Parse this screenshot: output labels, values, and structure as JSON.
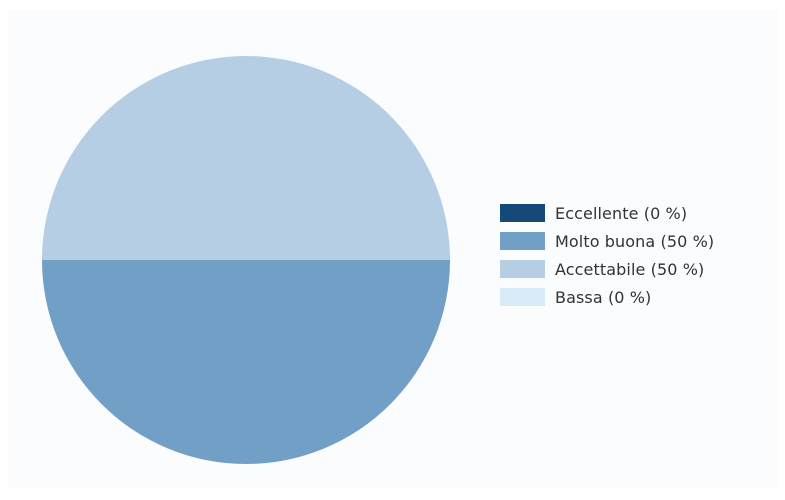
{
  "chart_data": {
    "type": "pie",
    "categories": [
      "Eccellente",
      "Molto buona",
      "Accettabile",
      "Bassa"
    ],
    "values": [
      0,
      50,
      50,
      0
    ],
    "legend_labels": [
      "Eccellente (0 %)",
      "Molto buona (50 %)",
      "Accettabile (50 %)",
      "Bassa (0 %)"
    ],
    "colors": [
      "#154a78",
      "#729fc6",
      "#b5cee4",
      "#d9ebf6"
    ],
    "legend_position": "right"
  }
}
